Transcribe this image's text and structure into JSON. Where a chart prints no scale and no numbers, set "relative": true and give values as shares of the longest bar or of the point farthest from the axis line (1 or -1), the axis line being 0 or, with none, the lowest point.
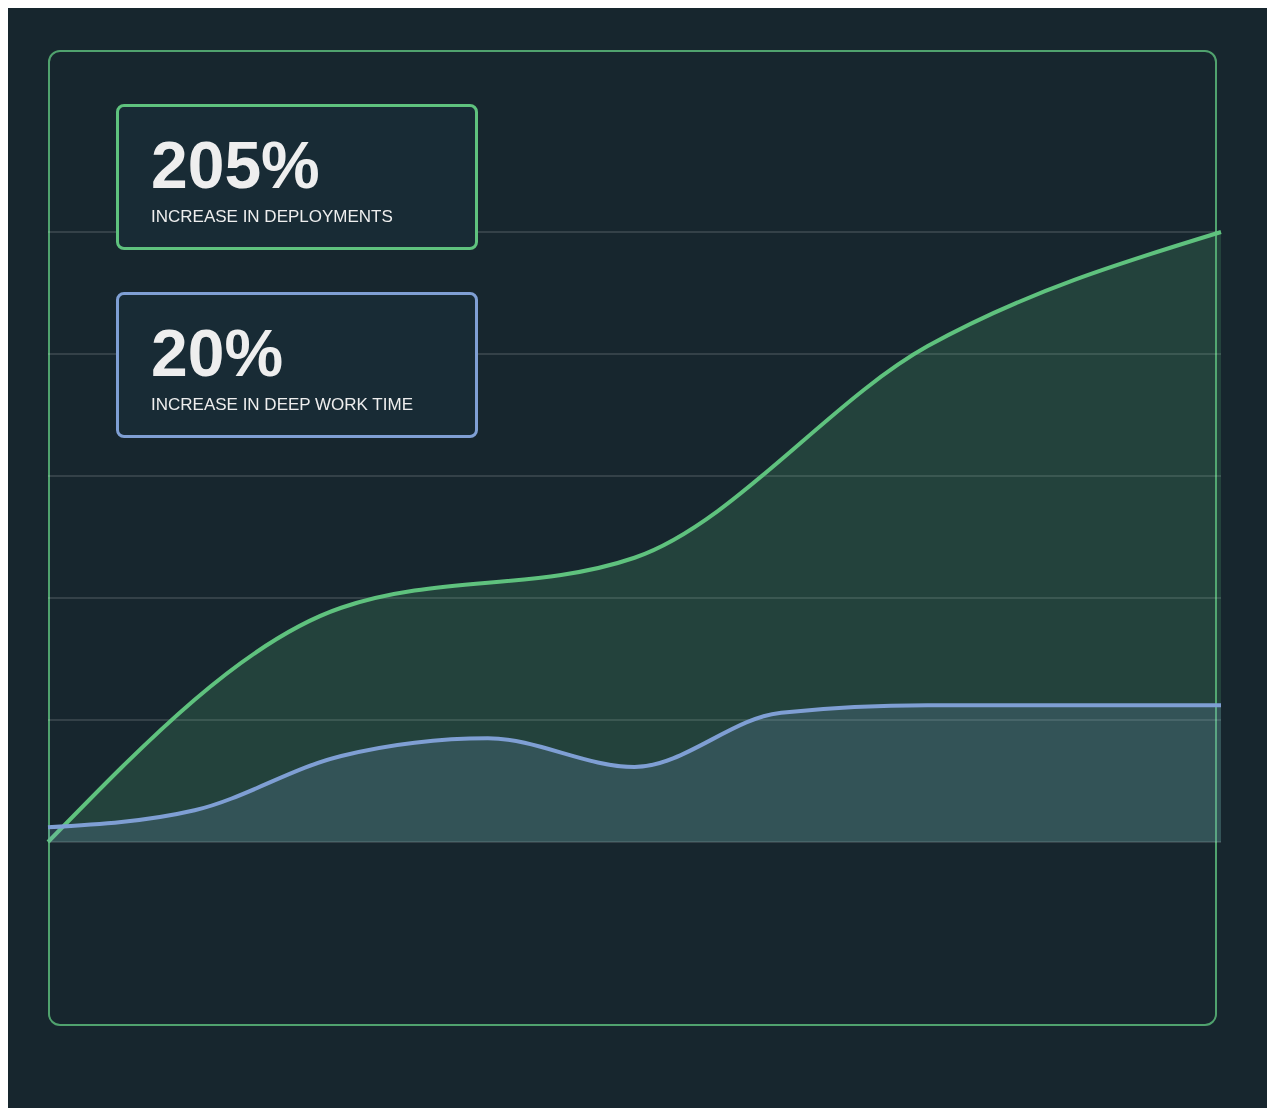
{
  "chart_data": {
    "type": "area",
    "relative": true,
    "categories": [
      null,
      null,
      null,
      null,
      null,
      null,
      null,
      null,
      null
    ],
    "series": [
      {
        "color": "#5fc27e",
        "values": [
          0,
          null,
          0.384,
          null,
          0.466,
          null,
          0.813,
          null,
          1
        ]
      },
      {
        "color": "#7f9fd4",
        "values": [
          0.024,
          0.052,
          0.141,
          0.17,
          0.123,
          0.212,
          0.224,
          0.224,
          0.224
        ]
      }
    ],
    "annotations": [
      "205%",
      "INCREASE IN DEPLOYMENTS",
      "20%",
      "INCREASE IN DEEP WORK TIME"
    ],
    "grid": "y"
  }
}
